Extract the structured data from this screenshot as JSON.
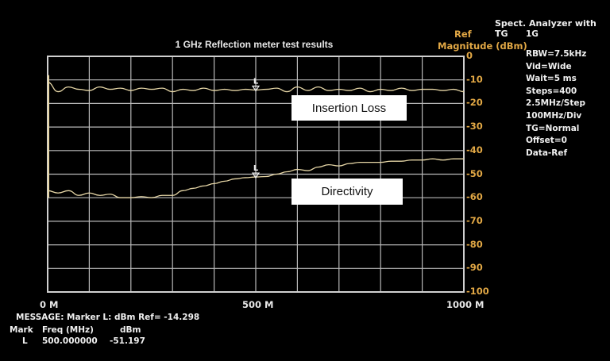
{
  "chart_data": {
    "type": "line",
    "title": "1 GHz Reflection meter test results",
    "ylabel": [
      "Ref",
      "Magnitude (dBm)"
    ],
    "xlim": [
      0,
      1000
    ],
    "ylim": [
      -100,
      0
    ],
    "grid": true,
    "x_ticks": [
      "0 M",
      "500 M",
      "1000 M"
    ],
    "y_ticks": [
      "0",
      "-10",
      "-20",
      "-30",
      "-40",
      "-50",
      "-60",
      "-70",
      "-80",
      "-90",
      "-100"
    ],
    "x": [
      0,
      25,
      50,
      75,
      100,
      125,
      150,
      175,
      200,
      225,
      250,
      275,
      300,
      325,
      350,
      375,
      400,
      425,
      450,
      475,
      500,
      525,
      550,
      575,
      600,
      625,
      650,
      675,
      700,
      725,
      750,
      775,
      800,
      825,
      850,
      875,
      900,
      925,
      950,
      975,
      1000
    ],
    "series": [
      {
        "name": "Insertion Loss",
        "values": [
          -11,
          -15,
          -13,
          -14,
          -14.5,
          -13,
          -14,
          -13.5,
          -14.5,
          -13.5,
          -14,
          -13.5,
          -15,
          -14,
          -14.5,
          -13.5,
          -14.5,
          -14,
          -14.5,
          -14,
          -14.3,
          -14,
          -13.5,
          -15,
          -13,
          -14.5,
          -13,
          -14.5,
          -14,
          -14.5,
          -13.5,
          -15,
          -14,
          -14.5,
          -13.5,
          -14.5,
          -14,
          -14,
          -14.5,
          -14,
          -15
        ]
      },
      {
        "name": "Directivity",
        "values": [
          -57,
          -58,
          -57,
          -59,
          -58,
          -59,
          -58.5,
          -60,
          -60,
          -59.5,
          -60,
          -59,
          -59,
          -57,
          -56,
          -55,
          -54,
          -53,
          -52,
          -51.5,
          -51.2,
          -51,
          -50,
          -49,
          -48,
          -48.5,
          -47,
          -46,
          -46.5,
          -45.5,
          -45,
          -45,
          -45,
          -44.5,
          -44.5,
          -44,
          -44,
          -43.5,
          -44,
          -43.5,
          -43.5
        ]
      }
    ],
    "marker": {
      "label": "L",
      "x": 500
    },
    "colors": {
      "trace": "#e6d6a6",
      "grid": "#b8b8b8",
      "axis_text": "#e2a845",
      "background": "#000000"
    }
  },
  "panel": {
    "heading": "Spect. Analyzer with TG",
    "model": "1G",
    "settings": [
      "RBW=7.5kHz",
      "Vid=Wide",
      "Wait=5 ms",
      "Steps=400",
      "2.5MHz/Step",
      "100MHz/Div",
      "TG=Normal",
      "Offset=0",
      "Data-Ref"
    ]
  },
  "message": "MESSAGE: Marker L:   dBm Ref= -14.298",
  "marker_table": {
    "headers": [
      "Mark",
      "Freq (MHz)",
      "dBm"
    ],
    "row": [
      "L",
      "500.000000",
      "-51.197"
    ]
  }
}
